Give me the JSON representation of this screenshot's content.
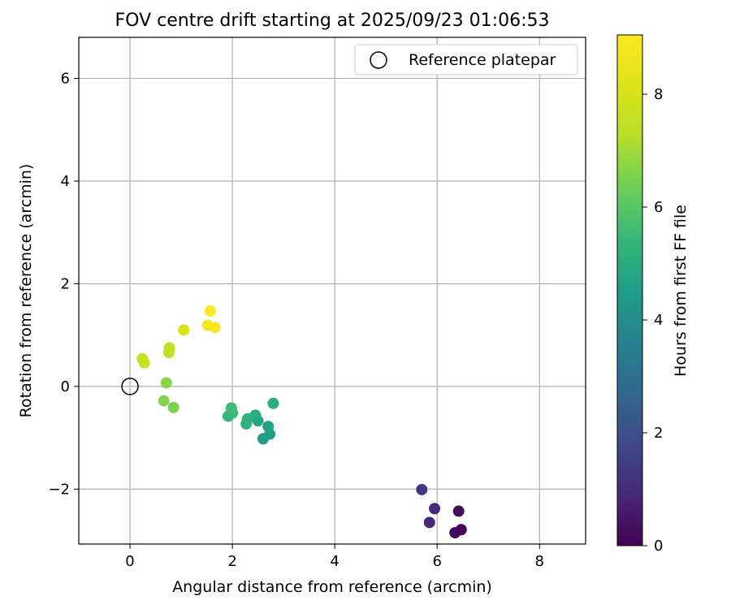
{
  "chart_data": {
    "type": "scatter",
    "title": "FOV centre drift starting at 2025/09/23 01:06:53",
    "xlabel": "Angular distance from reference (arcmin)",
    "ylabel": "Rotation from reference (arcmin)",
    "xlim": [
      -1.0,
      8.9
    ],
    "ylim": [
      -3.07,
      6.8
    ],
    "xticks": [
      0,
      2,
      4,
      6,
      8
    ],
    "xtick_labels": [
      "0",
      "2",
      "4",
      "6",
      "8"
    ],
    "yticks": [
      -2,
      0,
      2,
      4,
      6
    ],
    "ytick_labels": [
      "−2",
      "0",
      "2",
      "4",
      "6"
    ],
    "grid": true,
    "legend": {
      "position": "top-right",
      "entries": [
        "Reference platepar"
      ]
    },
    "reference_point": {
      "x": 0,
      "y": 0,
      "label": "Reference platepar"
    },
    "colorbar": {
      "label": "Hours from first FF file",
      "range": [
        0,
        9.05
      ],
      "ticks": [
        0,
        2,
        4,
        6,
        8
      ],
      "tick_labels": [
        "0",
        "2",
        "4",
        "6",
        "8"
      ],
      "colormap": "viridis"
    },
    "points": [
      {
        "x": 6.35,
        "y": -2.85,
        "hours": 0.05
      },
      {
        "x": 6.47,
        "y": -2.79,
        "hours": 0.15
      },
      {
        "x": 6.42,
        "y": -2.43,
        "hours": 0.25
      },
      {
        "x": 5.85,
        "y": -2.65,
        "hours": 0.9
      },
      {
        "x": 5.95,
        "y": -2.38,
        "hours": 1.0
      },
      {
        "x": 5.7,
        "y": -2.01,
        "hours": 1.3
      },
      {
        "x": 2.6,
        "y": -1.02,
        "hours": 4.5
      },
      {
        "x": 2.73,
        "y": -0.93,
        "hours": 4.6
      },
      {
        "x": 2.7,
        "y": -0.78,
        "hours": 4.7
      },
      {
        "x": 2.5,
        "y": -0.67,
        "hours": 4.9
      },
      {
        "x": 2.45,
        "y": -0.56,
        "hours": 5.0
      },
      {
        "x": 2.8,
        "y": -0.33,
        "hours": 5.1
      },
      {
        "x": 2.27,
        "y": -0.73,
        "hours": 5.2
      },
      {
        "x": 2.3,
        "y": -0.63,
        "hours": 5.3
      },
      {
        "x": 1.92,
        "y": -0.58,
        "hours": 5.4
      },
      {
        "x": 2.0,
        "y": -0.52,
        "hours": 5.5
      },
      {
        "x": 1.98,
        "y": -0.42,
        "hours": 5.6
      },
      {
        "x": 0.85,
        "y": -0.41,
        "hours": 6.5
      },
      {
        "x": 0.66,
        "y": -0.28,
        "hours": 6.6
      },
      {
        "x": 0.71,
        "y": 0.07,
        "hours": 6.7
      },
      {
        "x": 0.76,
        "y": 0.66,
        "hours": 7.4
      },
      {
        "x": 0.77,
        "y": 0.75,
        "hours": 7.5
      },
      {
        "x": 0.24,
        "y": 0.54,
        "hours": 7.6
      },
      {
        "x": 0.28,
        "y": 0.46,
        "hours": 7.7
      },
      {
        "x": 1.05,
        "y": 1.1,
        "hours": 8.2
      },
      {
        "x": 1.52,
        "y": 1.19,
        "hours": 8.8
      },
      {
        "x": 1.66,
        "y": 1.15,
        "hours": 8.9
      },
      {
        "x": 1.57,
        "y": 1.47,
        "hours": 9.0
      }
    ]
  }
}
